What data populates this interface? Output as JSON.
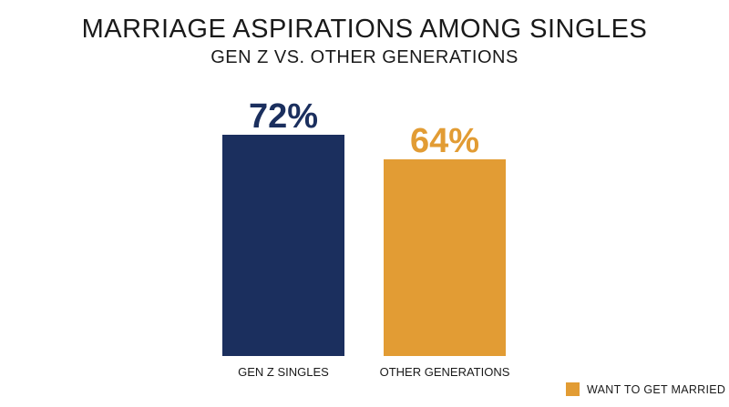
{
  "chart_data": {
    "type": "bar",
    "title": "MARRIAGE ASPIRATIONS AMONG SINGLES",
    "subtitle": "GEN Z VS. OTHER GENERATIONS",
    "categories": [
      "GEN Z SINGLES",
      "OTHER GENERATIONS"
    ],
    "series": [
      {
        "name": "WANT TO GET MARRIED",
        "values": [
          72,
          64
        ],
        "value_labels": [
          "72%",
          "64%"
        ],
        "colors": [
          "#1b2f5e",
          "#e29c34"
        ]
      }
    ],
    "xlabel": "",
    "ylabel": "",
    "ylim": [
      0,
      72
    ],
    "grid": false,
    "legend": {
      "position": "bottom-right",
      "label": "WANT TO GET MARRIED",
      "color": "#e29c34"
    }
  }
}
